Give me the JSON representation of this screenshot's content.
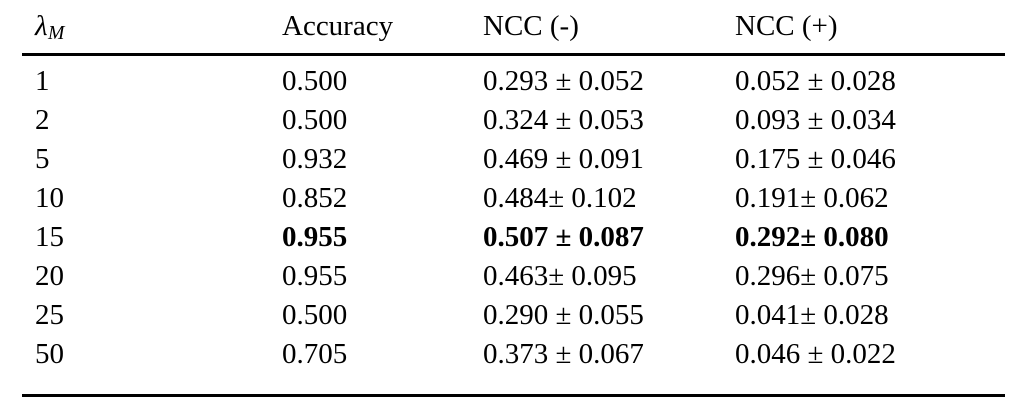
{
  "table": {
    "title": "Results table: accuracy and NCC versus lambda_M",
    "colors": {
      "text": "#000000",
      "background": "#ffffff",
      "rule": "#000000"
    },
    "header": {
      "lambda_symbol": "λ",
      "lambda_subscript": "M",
      "accuracy_label": "Accuracy",
      "ncc_neg_label": "NCC (-)",
      "ncc_pos_label": "NCC (+)"
    },
    "rows": [
      {
        "lambda_m": "1",
        "accuracy": "0.500",
        "ncc_neg": "0.293 ± 0.052",
        "ncc_pos": "0.052 ± 0.028",
        "emphasized": "false"
      },
      {
        "lambda_m": "2",
        "accuracy": "0.500",
        "ncc_neg": "0.324 ± 0.053",
        "ncc_pos": "0.093 ± 0.034",
        "emphasized": "false"
      },
      {
        "lambda_m": "5",
        "accuracy": "0.932",
        "ncc_neg": "0.469 ± 0.091",
        "ncc_pos": "0.175 ± 0.046",
        "emphasized": "false"
      },
      {
        "lambda_m": "10",
        "accuracy": "0.852",
        "ncc_neg": "0.484± 0.102",
        "ncc_pos": "0.191± 0.062",
        "emphasized": "false"
      },
      {
        "lambda_m": "15",
        "accuracy": "0.955",
        "ncc_neg": "0.507 ± 0.087",
        "ncc_pos": "0.292± 0.080",
        "emphasized": "true"
      },
      {
        "lambda_m": "20",
        "accuracy": "0.955",
        "ncc_neg": "0.463± 0.095",
        "ncc_pos": "0.296± 0.075",
        "emphasized": "false"
      },
      {
        "lambda_m": "25",
        "accuracy": "0.500",
        "ncc_neg": "0.290 ± 0.055",
        "ncc_pos": "0.041± 0.028",
        "emphasized": "false"
      },
      {
        "lambda_m": "50",
        "accuracy": "0.705",
        "ncc_neg": "0.373 ± 0.067",
        "ncc_pos": "0.046 ± 0.022",
        "emphasized": "false"
      }
    ]
  }
}
